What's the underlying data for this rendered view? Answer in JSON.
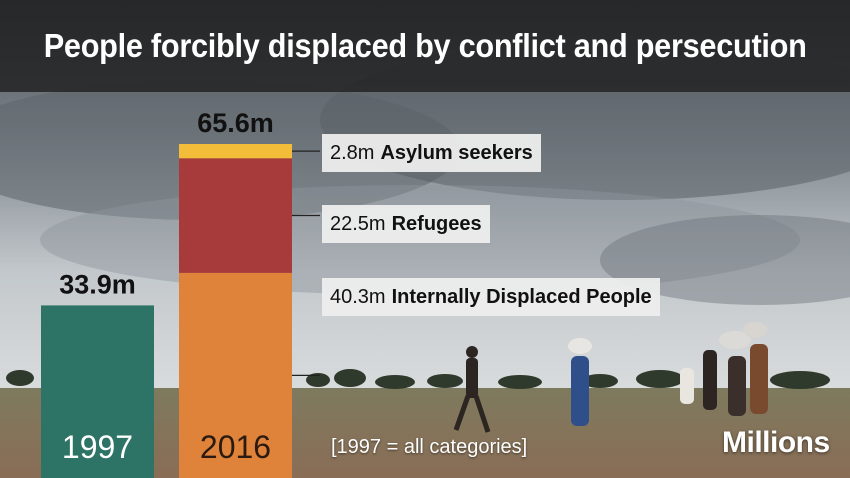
{
  "title": "People forcibly displaced by conflict and persecution",
  "note": "[1997 = all categories]",
  "unit_label": "Millions",
  "colors": {
    "y1997": "#2e7466",
    "idp": "#e0833a",
    "refugees": "#a73b3b",
    "asylum": "#f3bd3a"
  },
  "chart_data": {
    "type": "bar",
    "stacked": true,
    "categories": [
      "1997",
      "2016"
    ],
    "ylim": [
      0,
      65.6
    ],
    "bars": [
      {
        "category": "1997",
        "total_label": "33.9m",
        "segments": [
          {
            "name": "All categories",
            "value": 33.9,
            "color": "#2e7466"
          }
        ]
      },
      {
        "category": "2016",
        "total_label": "65.6m",
        "segments": [
          {
            "name": "Internally Displaced People",
            "value": 40.3,
            "value_label": "40.3m",
            "color": "#e0833a"
          },
          {
            "name": "Refugees",
            "value": 22.5,
            "value_label": "22.5m",
            "color": "#a73b3b"
          },
          {
            "name": "Asylum seekers",
            "value": 2.8,
            "value_label": "2.8m",
            "color": "#f3bd3a"
          }
        ]
      }
    ]
  }
}
